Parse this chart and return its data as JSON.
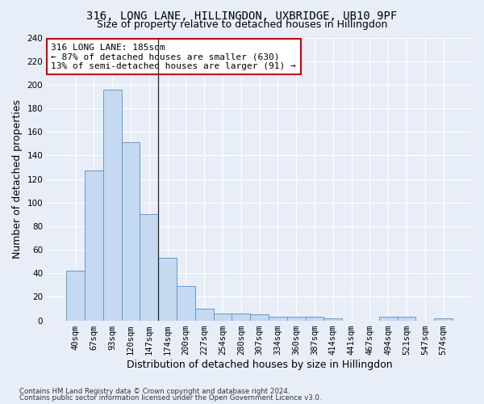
{
  "title": "316, LONG LANE, HILLINGDON, UXBRIDGE, UB10 9PF",
  "subtitle": "Size of property relative to detached houses in Hillingdon",
  "xlabel": "Distribution of detached houses by size in Hillingdon",
  "ylabel": "Number of detached properties",
  "bar_color": "#c5d9f0",
  "bar_edge_color": "#6699cc",
  "categories": [
    "40sqm",
    "67sqm",
    "93sqm",
    "120sqm",
    "147sqm",
    "174sqm",
    "200sqm",
    "227sqm",
    "254sqm",
    "280sqm",
    "307sqm",
    "334sqm",
    "360sqm",
    "387sqm",
    "414sqm",
    "441sqm",
    "467sqm",
    "494sqm",
    "521sqm",
    "547sqm",
    "574sqm"
  ],
  "values": [
    42,
    127,
    196,
    151,
    90,
    53,
    29,
    10,
    6,
    6,
    5,
    3,
    3,
    3,
    2,
    0,
    0,
    3,
    3,
    0,
    2
  ],
  "ylim": [
    0,
    240
  ],
  "yticks": [
    0,
    20,
    40,
    60,
    80,
    100,
    120,
    140,
    160,
    180,
    200,
    220,
    240
  ],
  "annotation_line1": "316 LONG LANE: 185sqm",
  "annotation_line2": "← 87% of detached houses are smaller (630)",
  "annotation_line3": "13% of semi-detached houses are larger (91) →",
  "marker_line_index": 4.5,
  "footer_line1": "Contains HM Land Registry data © Crown copyright and database right 2024.",
  "footer_line2": "Contains public sector information licensed under the Open Government Licence v3.0.",
  "bg_color": "#e8eef8",
  "plot_bg_color": "#e8eef8",
  "annotation_box_color": "#ffffff",
  "annotation_box_edge": "#cc0000",
  "grid_color": "#ffffff",
  "title_fontsize": 10,
  "subtitle_fontsize": 9,
  "axis_label_fontsize": 9,
  "tick_fontsize": 7.5,
  "annotation_fontsize": 8
}
